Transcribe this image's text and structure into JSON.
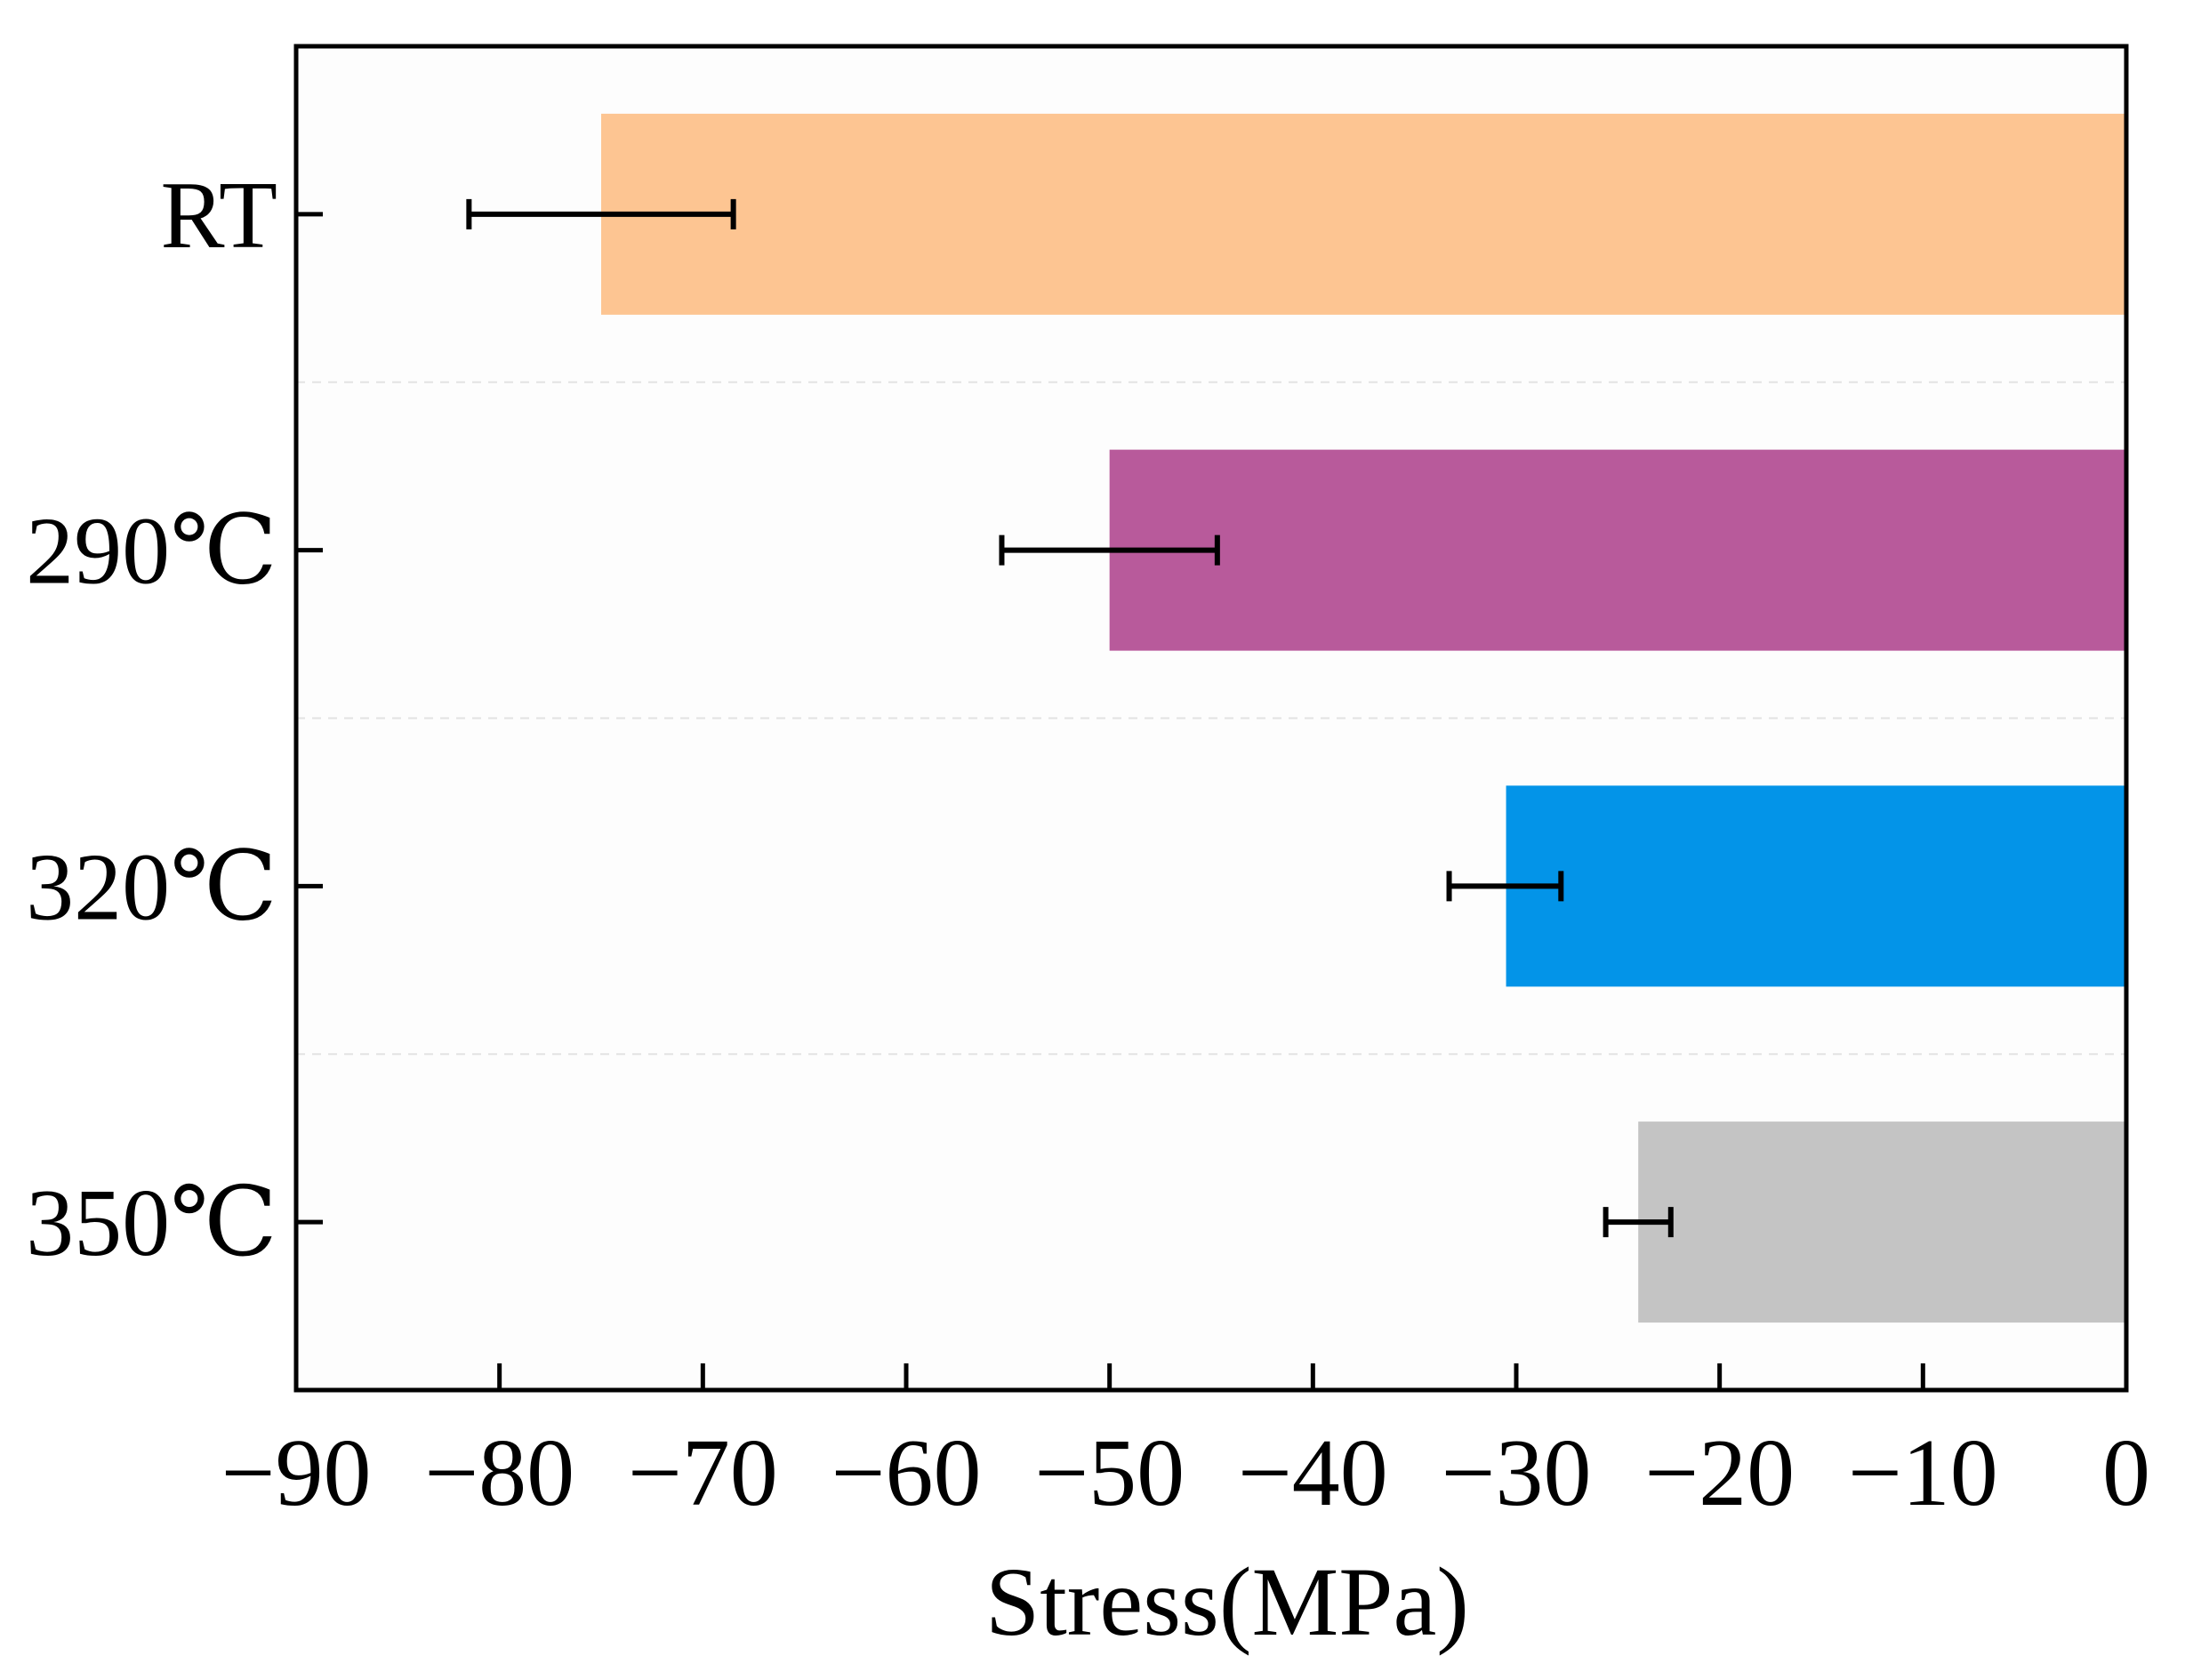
{
  "chart_data": {
    "type": "bar",
    "orientation": "horizontal",
    "categories": [
      "RT",
      "290℃",
      "320℃",
      "350℃"
    ],
    "values": [
      -75,
      -50,
      -30.5,
      -24
    ],
    "errors": [
      {
        "low": -81.5,
        "high": -68.5
      },
      {
        "low": -55.3,
        "high": -44.7
      },
      {
        "low": -33.3,
        "high": -27.8
      },
      {
        "low": -25.6,
        "high": -22.4
      }
    ],
    "colors": [
      "#FDC592",
      "#B85A9B",
      "#0394E8",
      "#C4C4C4"
    ],
    "title": "",
    "xlabel": "Stress(MPa)",
    "ylabel": "",
    "xlim": [
      -90,
      0
    ],
    "xticks": [
      -90,
      -80,
      -70,
      -60,
      -50,
      -40,
      -30,
      -20,
      -10,
      0
    ],
    "xtick_labels": [
      "−90",
      "−80",
      "−70",
      "−60",
      "−50",
      "−40",
      "−30",
      "−20",
      "−10",
      "0"
    ],
    "grid": "horizontal dashed separators",
    "legend": "none"
  }
}
